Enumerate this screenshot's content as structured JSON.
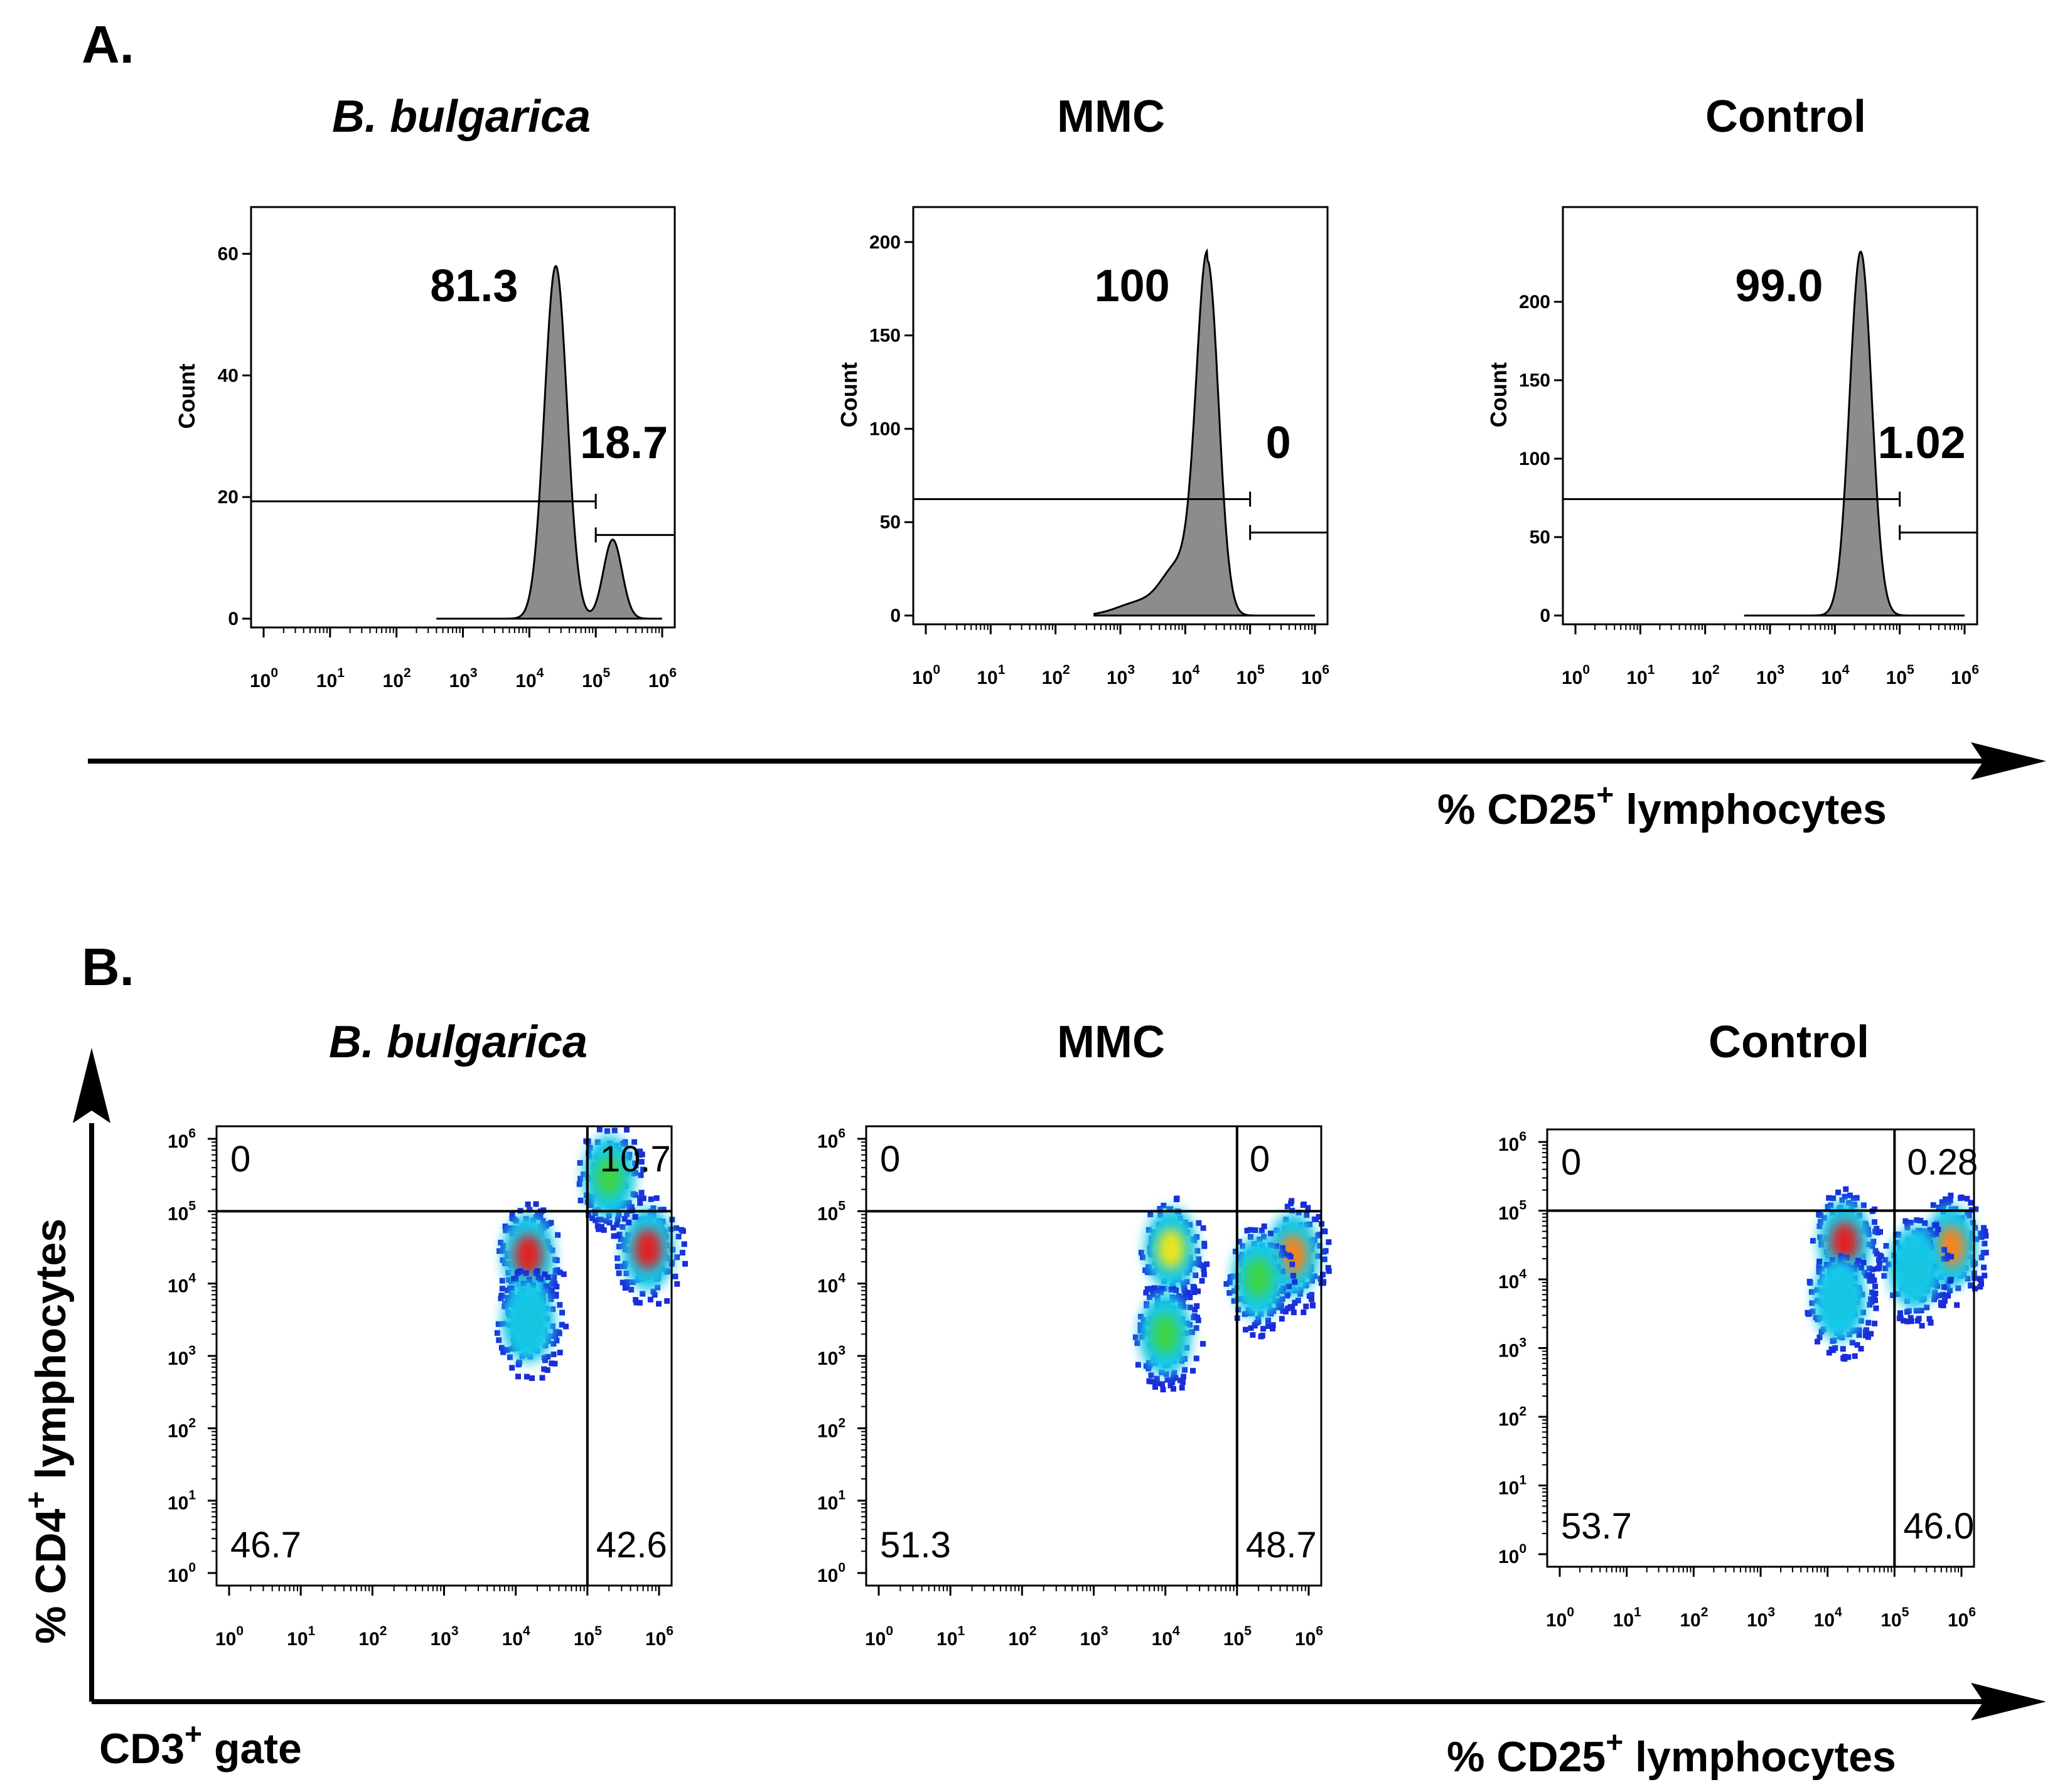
{
  "panels": {
    "a_label": "A.",
    "b_label": "B."
  },
  "histograms": [
    {
      "title": "B. bulgarica",
      "italic": true,
      "ylabel": "Count",
      "yticks": [
        "0",
        "20",
        "40",
        "60"
      ],
      "gate_low": "81.3",
      "gate_high": "18.7"
    },
    {
      "title": "MMC",
      "italic": false,
      "ylabel": "Count",
      "yticks": [
        "0",
        "50",
        "100",
        "150",
        "200"
      ],
      "gate_low": "100",
      "gate_high": "0"
    },
    {
      "title": "Control",
      "italic": false,
      "ylabel": "Count",
      "yticks": [
        "0",
        "50",
        "100",
        "150",
        "200"
      ],
      "gate_low": "99.0",
      "gate_high": "1.02"
    }
  ],
  "dotplots": [
    {
      "title": "B. bulgarica",
      "italic": true,
      "ul": "0",
      "ur": "10.7",
      "ll": "46.7",
      "lr": "42.6"
    },
    {
      "title": "MMC",
      "italic": false,
      "ul": "0",
      "ur": "0",
      "ll": "51.3",
      "lr": "48.7"
    },
    {
      "title": "Control",
      "italic": false,
      "ul": "0",
      "ur": "0.28",
      "ll": "53.7",
      "lr": "46.0"
    }
  ],
  "axis_labels": {
    "cd25_main": "% CD25",
    "cd25_sup": "+",
    "cd25_rest": " lymphocytes",
    "cd4_main": "% CD4",
    "cd4_sup": "+",
    "cd4_rest": " lymphocytes",
    "cd3_main": "CD3",
    "cd3_sup": "+",
    "cd3_rest": " gate"
  },
  "tick_base": "10",
  "tick_exponents": [
    "0",
    "1",
    "2",
    "3",
    "4",
    "5",
    "6"
  ],
  "chart_data": [
    {
      "type": "area",
      "title": "B. bulgarica",
      "xlabel": "% CD25+ lymphocytes",
      "ylabel": "Count",
      "xscale": "log",
      "xlim": [
        1,
        1000000
      ],
      "ylim": [
        0,
        65
      ],
      "peaks": [
        {
          "x": 25000,
          "y": 58
        },
        {
          "x": 180000,
          "y": 13
        }
      ],
      "gates": [
        {
          "label": "81.3",
          "x_range": [
            1,
            100000
          ]
        },
        {
          "label": "18.7",
          "x_range": [
            100000,
            1000000
          ]
        }
      ]
    },
    {
      "type": "area",
      "title": "MMC",
      "xlabel": "% CD25+ lymphocytes",
      "ylabel": "Count",
      "xscale": "log",
      "xlim": [
        1,
        1000000
      ],
      "ylim": [
        0,
        210
      ],
      "peaks": [
        {
          "x": 22000,
          "y": 190
        },
        {
          "x": 2000,
          "y": 7
        }
      ],
      "gates": [
        {
          "label": "100",
          "x_range": [
            1,
            100000
          ]
        },
        {
          "label": "0",
          "x_range": [
            100000,
            1000000
          ]
        }
      ]
    },
    {
      "type": "area",
      "title": "Control",
      "xlabel": "% CD25+ lymphocytes",
      "ylabel": "Count",
      "xscale": "log",
      "xlim": [
        1,
        1000000
      ],
      "ylim": [
        0,
        250
      ],
      "peaks": [
        {
          "x": 25000,
          "y": 232
        }
      ],
      "gates": [
        {
          "label": "99.0",
          "x_range": [
            1,
            100000
          ]
        },
        {
          "label": "1.02",
          "x_range": [
            100000,
            1000000
          ]
        }
      ]
    },
    {
      "type": "scatter",
      "title": "B. bulgarica",
      "xlabel": "% CD25+ lymphocytes",
      "ylabel": "% CD4+ lymphocytes",
      "xscale": "log",
      "yscale": "log",
      "xlim": [
        1,
        1000000
      ],
      "ylim": [
        1,
        1000000
      ],
      "quadrants": {
        "upper_left": "0",
        "upper_right": "10.7",
        "lower_left": "46.7",
        "lower_right": "42.6"
      },
      "clusters": [
        {
          "x": 15000,
          "y": 25000,
          "peak": "red"
        },
        {
          "x": 700000,
          "y": 30000,
          "peak": "red"
        },
        {
          "x": 15000,
          "y": 3000,
          "peak": "cyan"
        },
        {
          "x": 200000,
          "y": 300000,
          "peak": "green"
        }
      ]
    },
    {
      "type": "scatter",
      "title": "MMC",
      "xlabel": "% CD25+ lymphocytes",
      "ylabel": "% CD4+ lymphocytes",
      "xscale": "log",
      "yscale": "log",
      "xlim": [
        1,
        1000000
      ],
      "ylim": [
        1,
        1000000
      ],
      "quadrants": {
        "upper_left": "0",
        "upper_right": "0",
        "lower_left": "51.3",
        "lower_right": "48.7"
      },
      "clusters": [
        {
          "x": 12000,
          "y": 30000,
          "peak": "yellow"
        },
        {
          "x": 600000,
          "y": 25000,
          "peak": "orange"
        },
        {
          "x": 10000,
          "y": 2000,
          "peak": "green"
        },
        {
          "x": 200000,
          "y": 12000,
          "peak": "green"
        }
      ]
    },
    {
      "type": "scatter",
      "title": "Control",
      "xlabel": "% CD25+ lymphocytes",
      "ylabel": "% CD4+ lymphocytes",
      "xscale": "log",
      "yscale": "log",
      "xlim": [
        1,
        1000000
      ],
      "ylim": [
        1,
        1000000
      ],
      "quadrants": {
        "upper_left": "0",
        "upper_right": "0.28",
        "lower_left": "53.7",
        "lower_right": "46.0"
      },
      "clusters": [
        {
          "x": 18000,
          "y": 35000,
          "peak": "red"
        },
        {
          "x": 700000,
          "y": 30000,
          "peak": "orange"
        },
        {
          "x": 15000,
          "y": 5000,
          "peak": "cyan"
        },
        {
          "x": 200000,
          "y": 15000,
          "peak": "cyan"
        }
      ]
    }
  ],
  "colors": {
    "histogram_fill": "#8c8c8c",
    "density_low": "#1a2bd8",
    "density_mid": "#16c8e8",
    "density_high": "#dc2222"
  }
}
